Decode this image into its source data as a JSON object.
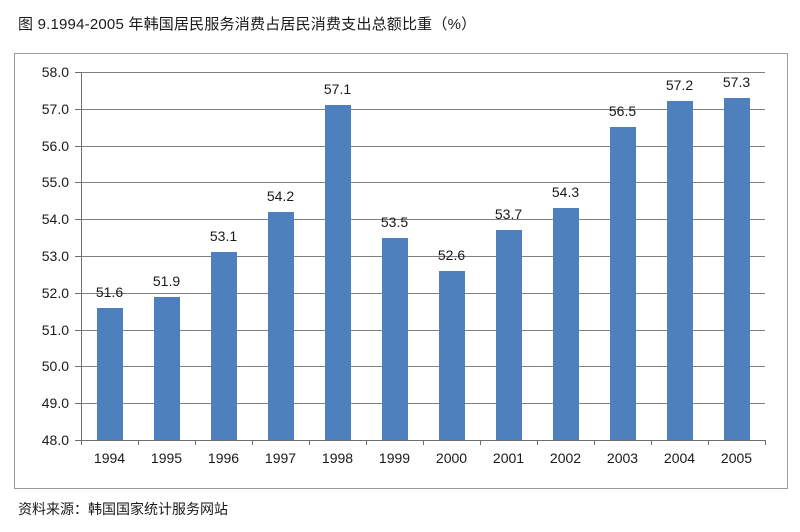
{
  "page": {
    "title": "图 9.1994-2005 年韩国居民服务消费占居民消费支出总额比重（%）",
    "source": "资料来源：韩国国家统计服务网站"
  },
  "chart_data": {
    "type": "bar",
    "title": "图 9.1994-2005 年韩国居民服务消费占居民消费支出总额比重（%）",
    "categories": [
      "1994",
      "1995",
      "1996",
      "1997",
      "1998",
      "1999",
      "2000",
      "2001",
      "2002",
      "2003",
      "2004",
      "2005"
    ],
    "values": [
      51.6,
      51.9,
      53.1,
      54.2,
      57.1,
      53.5,
      52.6,
      53.7,
      54.3,
      56.5,
      57.2,
      57.3
    ],
    "xlabel": "",
    "ylabel": "",
    "ylim": [
      48.0,
      58.0
    ],
    "ytick_step": 1.0,
    "ytick_decimals": 1,
    "value_label_decimals": 1,
    "grid": true,
    "legend": "none",
    "colors": {
      "bar": "#4d80bc",
      "gridline": "#808080",
      "axis": "#6e6e6e",
      "frame_border": "#9c9c9c",
      "text": "#1a1a1a",
      "background": "#ffffff"
    }
  }
}
